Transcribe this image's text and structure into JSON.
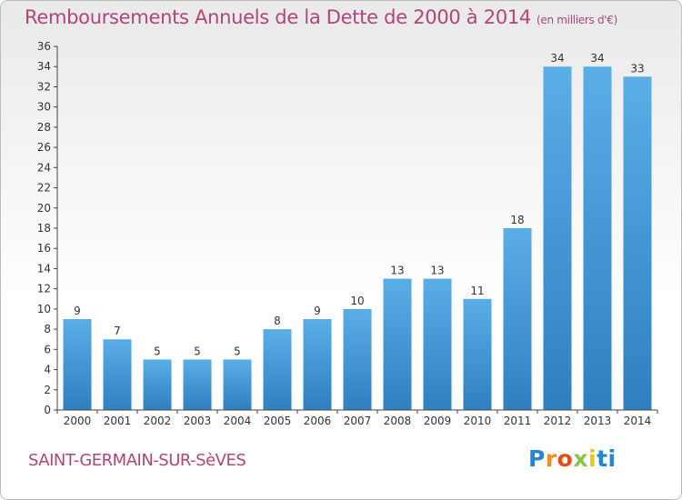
{
  "header": {
    "title": "Remboursements Annuels de la Dette de 2000 à 2014",
    "unit": "(en milliers d'€)"
  },
  "footer": {
    "commune": "SAINT-GERMAIN-SUR-SèVES",
    "logo_text": "Proxiti"
  },
  "colors": {
    "bar_light": "#5aaee6",
    "bar_dark": "#2f7fc1",
    "title": "#b0457a"
  },
  "chart_data": {
    "type": "bar",
    "title": "Remboursements Annuels de la Dette de 2000 à 2014",
    "subtitle": "(en milliers d'€)",
    "categories": [
      "2000",
      "2001",
      "2002",
      "2003",
      "2004",
      "2005",
      "2006",
      "2007",
      "2008",
      "2009",
      "2010",
      "2011",
      "2012",
      "2013",
      "2014"
    ],
    "values": [
      9,
      7,
      5,
      5,
      5,
      8,
      9,
      10,
      13,
      13,
      11,
      18,
      34,
      34,
      33
    ],
    "xlabel": "",
    "ylabel": "",
    "ylim": [
      0,
      36
    ],
    "yticks": [
      0,
      2,
      4,
      6,
      8,
      10,
      12,
      14,
      16,
      18,
      20,
      22,
      24,
      26,
      28,
      30,
      32,
      34,
      36
    ],
    "grid": false
  }
}
